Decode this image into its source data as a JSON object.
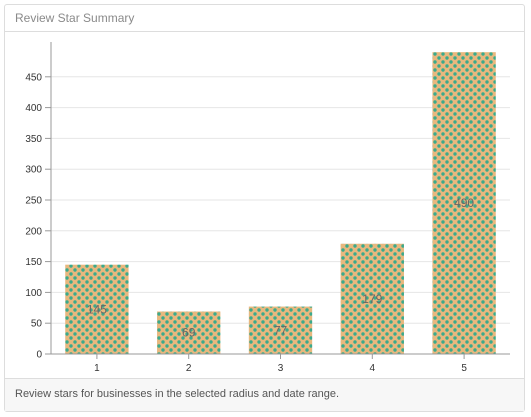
{
  "panel": {
    "title": "Review Star Summary",
    "footer": "Review stars for businesses in the selected radius and date range."
  },
  "colors": {
    "bar_fill": "#e8b87e",
    "bar_dot": "#3aaa8c",
    "grid": "#e6e6e6",
    "axis": "#999999",
    "label": "#666666"
  },
  "chart_data": {
    "type": "bar",
    "title": "Review Star Summary",
    "xlabel": "",
    "ylabel": "",
    "categories": [
      "1",
      "2",
      "3",
      "4",
      "5"
    ],
    "values": [
      145,
      69,
      77,
      179,
      490
    ],
    "ylim": [
      0,
      500
    ],
    "yticks": [
      0,
      50,
      100,
      150,
      200,
      250,
      300,
      350,
      400,
      450
    ],
    "grid": true,
    "legend": "none",
    "data_labels": true
  }
}
